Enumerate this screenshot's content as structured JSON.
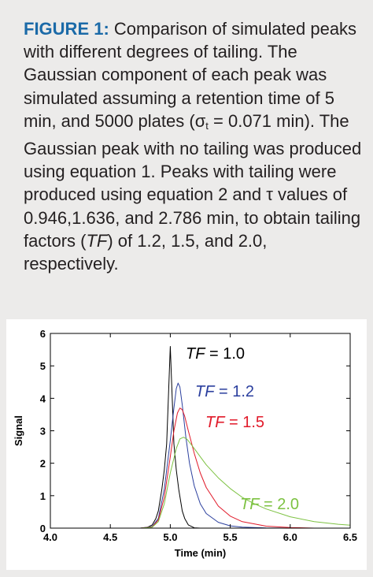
{
  "caption": {
    "label": "FIGURE 1:",
    "t1": " Comparison of simulated peaks with different degrees of tailing. The Gaussian component of each peak was simulated assuming a retention time of 5 min, and 5000 plates (σ",
    "sub": "t",
    "t2": " = 0.071 min). The Gaussian peak with no tailing was produced using equation 1. Peaks with tailing were produced using equation 2 and τ values of 0.946,1.636, and 2.786 min, to obtain tailing factors (",
    "tf": "TF",
    "t3": ") of 1.2, 1.5, and 2.0, respectively."
  },
  "colors": {
    "caption_label": "#1b6aa8",
    "background": "#ecebea",
    "axis": "#000000"
  },
  "chart_data": {
    "type": "line",
    "xlabel": "Time (min)",
    "ylabel": "Signal",
    "xlim": [
      4.0,
      6.5
    ],
    "ylim": [
      0,
      6
    ],
    "xticks": [
      "4.0",
      "4.5",
      "5.0",
      "5.5",
      "6.0",
      "6.5"
    ],
    "yticks": [
      "0",
      "1",
      "2",
      "3",
      "4",
      "5",
      "6"
    ],
    "grid": false,
    "legend": "none",
    "series": [
      {
        "label_prefix": "TF",
        "label_value": " = 1.0",
        "color": "#000000",
        "x": [
          4.75,
          4.8,
          4.85,
          4.88,
          4.9,
          4.93,
          4.95,
          4.97,
          5.0,
          5.03,
          5.05,
          5.07,
          5.1,
          5.12,
          5.15,
          5.2,
          5.25
        ],
        "y": [
          0.0,
          0.01,
          0.1,
          0.3,
          0.53,
          1.2,
          1.8,
          2.6,
          5.6,
          2.6,
          1.8,
          1.2,
          0.53,
          0.3,
          0.1,
          0.01,
          0.0
        ]
      },
      {
        "label_prefix": "TF",
        "label_value": " = 1.2",
        "color": "#2b3f9e",
        "x": [
          4.75,
          4.85,
          4.9,
          4.95,
          5.0,
          5.03,
          5.05,
          5.065,
          5.08,
          5.1,
          5.13,
          5.16,
          5.2,
          5.25,
          5.3,
          5.4,
          5.5,
          5.6,
          5.8,
          6.0
        ],
        "y": [
          0.0,
          0.05,
          0.3,
          1.2,
          2.7,
          3.7,
          4.3,
          4.47,
          4.35,
          3.8,
          2.8,
          2.0,
          1.3,
          0.75,
          0.45,
          0.18,
          0.07,
          0.03,
          0.005,
          0.0
        ]
      },
      {
        "label_prefix": "TF",
        "label_value": " = 1.5",
        "color": "#e11a2a",
        "x": [
          4.75,
          4.85,
          4.9,
          4.95,
          5.0,
          5.03,
          5.06,
          5.08,
          5.1,
          5.12,
          5.15,
          5.2,
          5.25,
          5.3,
          5.4,
          5.5,
          5.6,
          5.8,
          6.0,
          6.2
        ],
        "y": [
          0.0,
          0.04,
          0.25,
          0.95,
          2.2,
          3.0,
          3.55,
          3.7,
          3.65,
          3.45,
          3.0,
          2.3,
          1.7,
          1.25,
          0.68,
          0.37,
          0.2,
          0.06,
          0.02,
          0.0
        ]
      },
      {
        "label_prefix": "TF",
        "label_value": " = 2.0",
        "color": "#7dc242",
        "x": [
          4.75,
          4.85,
          4.9,
          4.95,
          5.0,
          5.05,
          5.08,
          5.11,
          5.14,
          5.18,
          5.2,
          5.25,
          5.3,
          5.4,
          5.5,
          5.6,
          5.7,
          5.8,
          6.0,
          6.2,
          6.4,
          6.5
        ],
        "y": [
          0.0,
          0.03,
          0.2,
          0.75,
          1.7,
          2.45,
          2.75,
          2.8,
          2.74,
          2.55,
          2.45,
          2.2,
          1.95,
          1.55,
          1.22,
          0.95,
          0.75,
          0.59,
          0.35,
          0.2,
          0.12,
          0.09
        ]
      }
    ]
  }
}
